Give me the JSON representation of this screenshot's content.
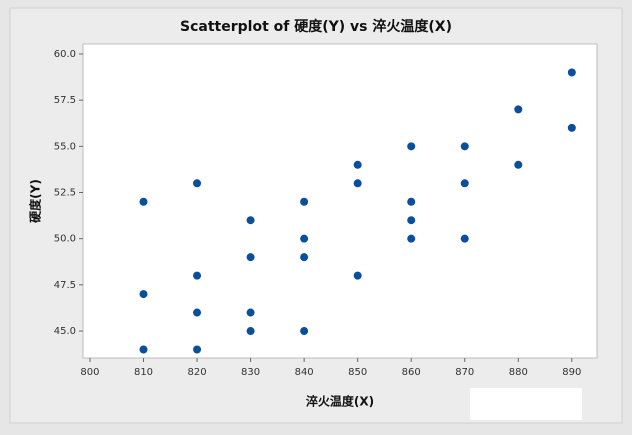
{
  "chart_data": {
    "type": "scatter",
    "title": "Scatterplot of 硬度(Y) vs 淬火温度(X)",
    "x_label": "淬火温度(X)",
    "y_label": "硬度(Y)",
    "xlim": [
      798.7,
      894.7
    ],
    "ylim": [
      43.54,
      60.54
    ],
    "xticks": [
      800,
      810,
      820,
      830,
      840,
      850,
      860,
      870,
      880,
      890
    ],
    "yticks": [
      {
        "value": 45,
        "label": "45.0"
      },
      {
        "value": 47.5,
        "label": "47.5"
      },
      {
        "value": 50,
        "label": "50.0"
      },
      {
        "value": 52.5,
        "label": "52.5"
      },
      {
        "value": 55,
        "label": "55.0"
      },
      {
        "value": 57.5,
        "label": "57.5"
      },
      {
        "value": 60,
        "label": "60.0"
      }
    ],
    "color": "#0a4f9e",
    "x": [
      810,
      810,
      810,
      820,
      820,
      820,
      820,
      830,
      830,
      830,
      830,
      840,
      840,
      840,
      840,
      850,
      850,
      850,
      860,
      860,
      860,
      860,
      870,
      870,
      870,
      880,
      880,
      890,
      890
    ],
    "y": [
      52,
      47,
      44,
      53,
      48,
      46,
      44,
      51,
      49,
      46,
      45,
      52,
      50,
      49,
      45,
      54,
      53,
      48,
      55,
      52,
      51,
      50,
      55,
      53,
      50,
      57,
      54,
      59,
      56
    ]
  }
}
